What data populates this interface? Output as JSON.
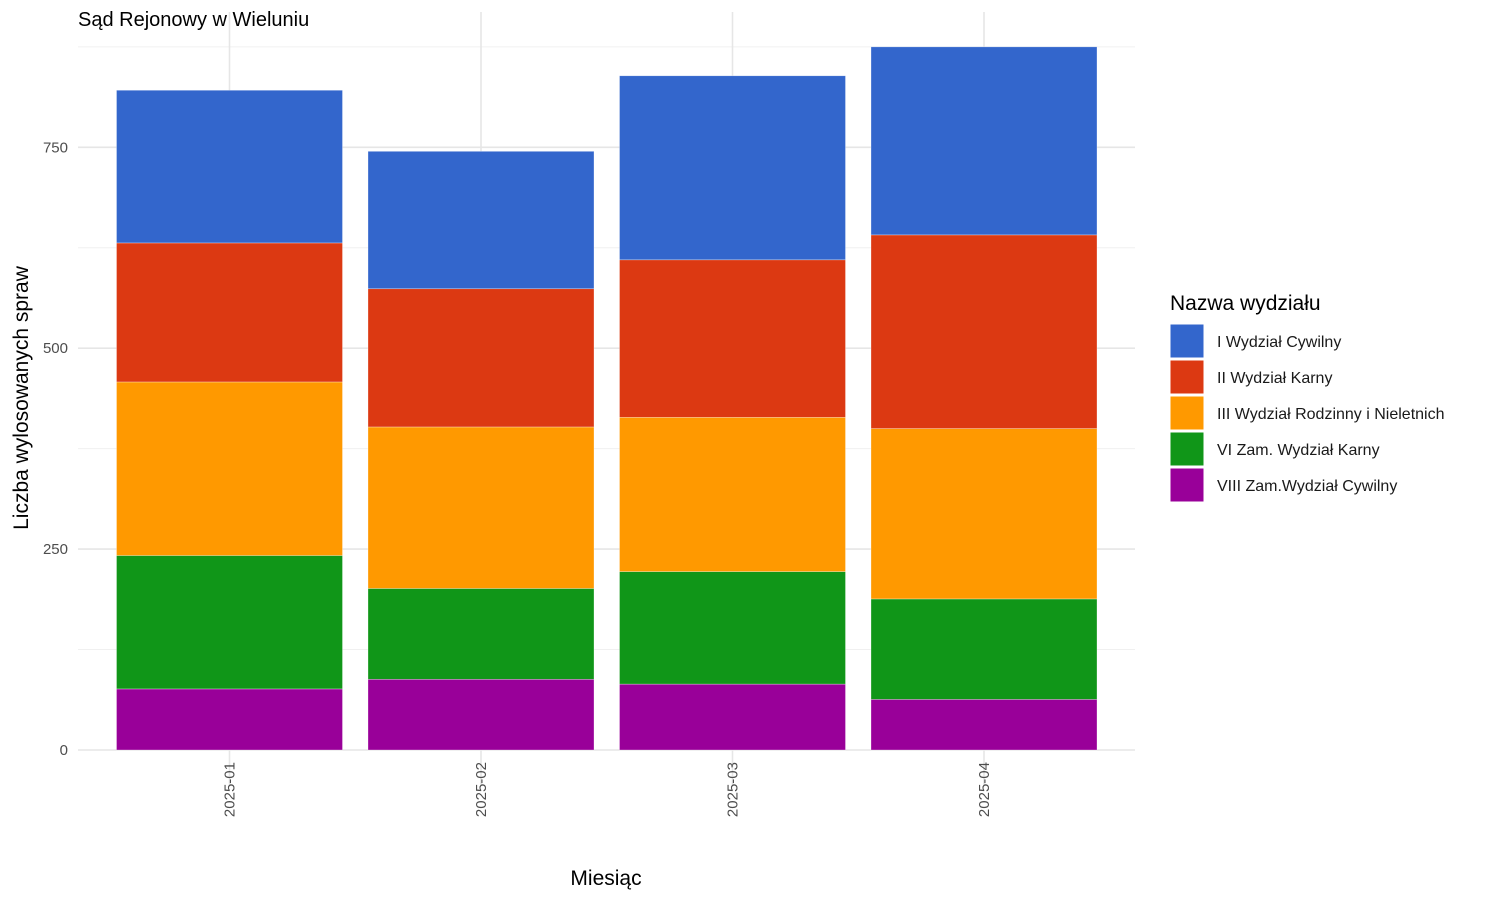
{
  "chart_data": {
    "type": "bar",
    "stacked": true,
    "title": "Sąd Rejonowy w Wieluniu",
    "xlabel": "Miesiąc",
    "ylabel": "Liczba wylosowanych spraw",
    "categories": [
      "2025-01",
      "2025-02",
      "2025-03",
      "2025-04"
    ],
    "ylim": [
      0,
      880
    ],
    "yticks": [
      0,
      250,
      500,
      750
    ],
    "grid": true,
    "legend": {
      "title": "Nazwa wydziału",
      "position": "right"
    },
    "series": [
      {
        "name": "VIII Zam.Wydział Cywilny",
        "color": "#990099",
        "values": [
          76,
          88,
          82,
          63
        ]
      },
      {
        "name": "VI Zam. Wydział Karny",
        "color": "#109618",
        "values": [
          166,
          113,
          140,
          125
        ]
      },
      {
        "name": "III Wydział Rodzinny i Nieletnich",
        "color": "#FF9900",
        "values": [
          216,
          201,
          192,
          212
        ]
      },
      {
        "name": "II Wydział Karny",
        "color": "#DC3912",
        "values": [
          173,
          172,
          196,
          241
        ]
      },
      {
        "name": "I Wydział Cywilny",
        "color": "#3366CC",
        "values": [
          190,
          171,
          229,
          234
        ]
      }
    ],
    "legend_order": [
      "I Wydział Cywilny",
      "II Wydział Karny",
      "III Wydział Rodzinny i Nieletnich",
      "VI Zam. Wydział Karny",
      "VIII Zam.Wydział Cywilny"
    ]
  }
}
